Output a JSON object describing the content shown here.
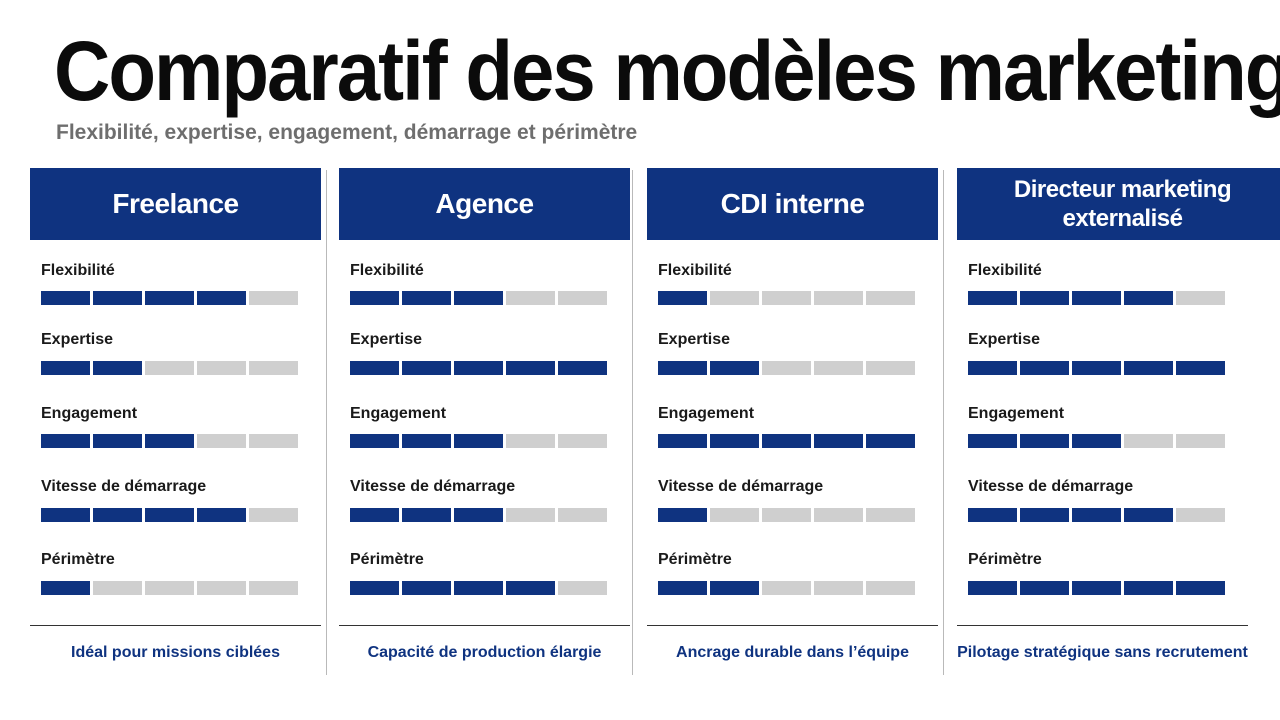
{
  "title": "Comparatif des modèles marketing",
  "subtitle": "Flexibilité, expertise, engagement, démarrage et périmètre",
  "colors": {
    "accent": "#0f3380",
    "inactive": "#cfcfcf",
    "header_text": "#ffffff"
  },
  "chart_data": {
    "type": "table",
    "scale_max": 5,
    "criteria": [
      "Flexibilité",
      "Expertise",
      "Engagement",
      "Vitesse de démarrage",
      "Périmètre"
    ],
    "models": [
      {
        "name": "Freelance",
        "scores": [
          4,
          2,
          3,
          4,
          1
        ],
        "footer": "Idéal pour missions ciblées"
      },
      {
        "name": "Agence",
        "scores": [
          3,
          5,
          3,
          3,
          4
        ],
        "footer": "Capacité de production élargie"
      },
      {
        "name": "CDI interne",
        "scores": [
          1,
          2,
          5,
          1,
          2
        ],
        "footer": "Ancrage durable dans l’équipe"
      },
      {
        "name": "Directeur marketing externalisé",
        "scores": [
          4,
          5,
          3,
          4,
          5
        ],
        "footer": "Pilotage stratégique sans recrutement"
      }
    ]
  }
}
